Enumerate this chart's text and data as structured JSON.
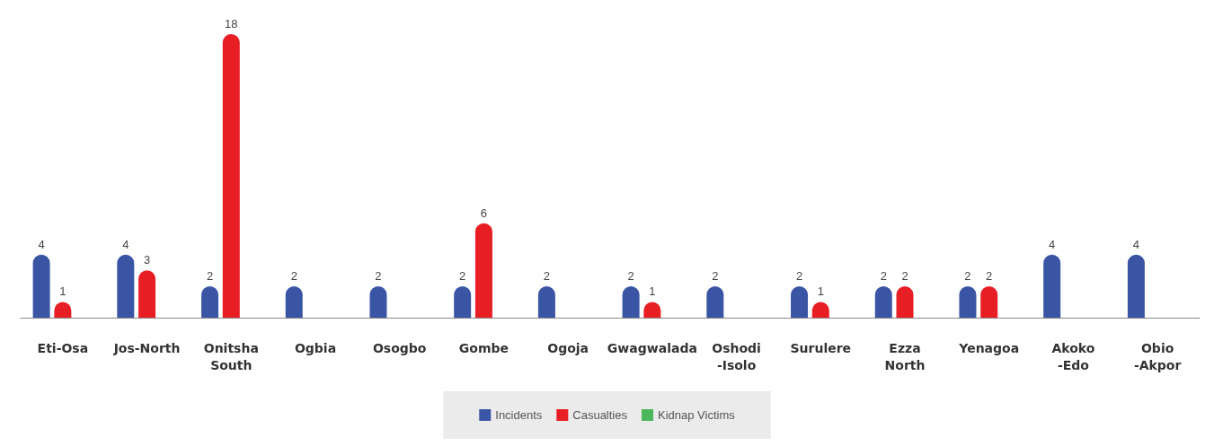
{
  "chart_data": {
    "type": "bar",
    "categories": [
      "Eti-Osa",
      "Jos-North",
      "Onitsha\nSouth",
      "Ogbia",
      "Osogbo",
      "Gombe",
      "Ogoja",
      "Gwagwalada",
      "Oshodi\n-Isolo",
      "Surulere",
      "Ezza\nNorth",
      "Yenagoa",
      "Akoko\n-Edo",
      "Obio\n-Akpor"
    ],
    "series": [
      {
        "name": "Incidents",
        "color": "#3b55a5",
        "values": [
          4,
          4,
          2,
          2,
          2,
          2,
          2,
          2,
          2,
          2,
          2,
          2,
          4,
          4
        ]
      },
      {
        "name": "Casualties",
        "color": "#e81e25",
        "values": [
          1,
          3,
          18,
          null,
          null,
          6,
          null,
          1,
          null,
          1,
          2,
          2,
          null,
          null
        ]
      },
      {
        "name": "Kidnap Victims",
        "color": "#4cb85c",
        "values": [
          null,
          null,
          null,
          null,
          null,
          null,
          null,
          null,
          null,
          null,
          null,
          null,
          null,
          null
        ]
      }
    ],
    "data_labels": true,
    "legend": "bottom"
  }
}
